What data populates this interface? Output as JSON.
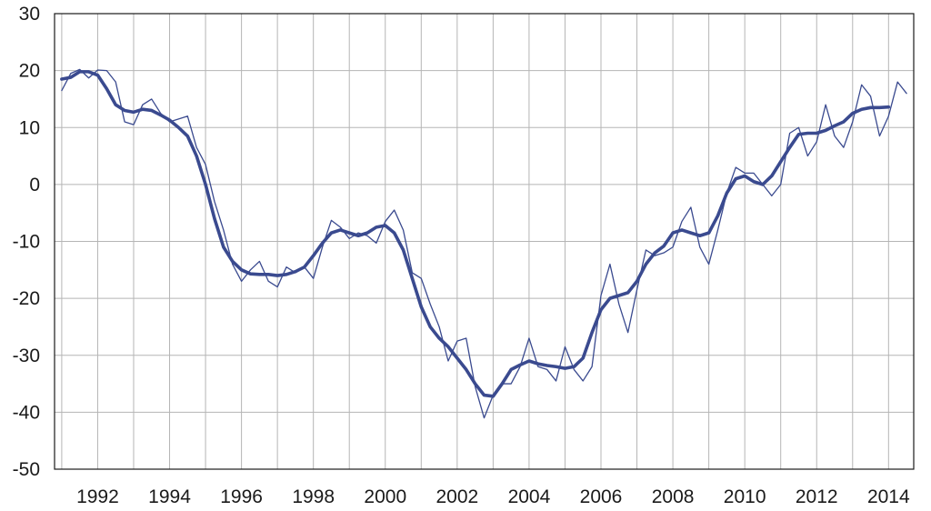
{
  "chart_data": {
    "type": "line",
    "title": "",
    "xlabel": "",
    "ylabel": "",
    "xlim": [
      1990.8,
      2014.7
    ],
    "ylim": [
      -50,
      30
    ],
    "grid": true,
    "x_ticks": [
      1992,
      1994,
      1996,
      1998,
      2000,
      2002,
      2004,
      2006,
      2008,
      2010,
      2012,
      2014
    ],
    "x_tick_labels": [
      "1992",
      "1994",
      "1996",
      "1998",
      "2000",
      "2002",
      "2004",
      "2006",
      "2008",
      "2010",
      "2012",
      "2014"
    ],
    "y_ticks": [
      -50,
      -40,
      -30,
      -20,
      -10,
      0,
      10,
      20,
      30
    ],
    "y_tick_labels": [
      "-50",
      "-40",
      "-30",
      "-20",
      "-10",
      "0",
      "10",
      "20",
      "30"
    ],
    "colors": {
      "line": "#3a4a8f",
      "grid": "#b5b5b5",
      "frame": "#1a1a1a"
    },
    "series": [
      {
        "x": [
          1991.0,
          1991.25,
          1991.5,
          1991.75,
          1992.0,
          1992.25,
          1992.5,
          1992.75,
          1993.0,
          1993.25,
          1993.5,
          1993.75,
          1994.0,
          1994.25,
          1994.5,
          1994.75,
          1995.0,
          1995.25,
          1995.5,
          1995.75,
          1996.0,
          1996.25,
          1996.5,
          1996.75,
          1997.0,
          1997.25,
          1997.5,
          1997.75,
          1998.0,
          1998.25,
          1998.5,
          1998.75,
          1999.0,
          1999.25,
          1999.5,
          1999.75,
          2000.0,
          2000.25,
          2000.5,
          2000.75,
          2001.0,
          2001.25,
          2001.5,
          2001.75,
          2002.0,
          2002.25,
          2002.5,
          2002.75,
          2003.0,
          2003.25,
          2003.5,
          2003.75,
          2004.0,
          2004.25,
          2004.5,
          2004.75,
          2005.0,
          2005.25,
          2005.5,
          2005.75,
          2006.0,
          2006.25,
          2006.5,
          2006.75,
          2007.0,
          2007.25,
          2007.5,
          2007.75,
          2008.0,
          2008.25,
          2008.5,
          2008.75,
          2009.0,
          2009.25,
          2009.5,
          2009.75,
          2010.0,
          2010.25,
          2010.5,
          2010.75,
          2011.0,
          2011.25,
          2011.5,
          2011.75,
          2012.0,
          2012.25,
          2012.5,
          2012.75,
          2013.0,
          2013.25,
          2013.5,
          2013.75,
          2014.0,
          2014.25,
          2014.5
        ],
        "values": [
          16.5,
          19.5,
          20.2,
          18.7,
          20.1,
          20.0,
          18.0,
          11.0,
          10.5,
          14.0,
          15.0,
          12.5,
          11.0,
          11.5,
          12.0,
          6.5,
          3.5,
          -3.0,
          -8.0,
          -14.0,
          -17.0,
          -15.0,
          -13.5,
          -17.0,
          -18.0,
          -14.5,
          -15.5,
          -14.5,
          -16.5,
          -11.0,
          -6.3,
          -7.5,
          -9.5,
          -8.5,
          -9.0,
          -10.3,
          -6.5,
          -4.5,
          -8.0,
          -15.5,
          -16.5,
          -21.0,
          -25.0,
          -31.0,
          -27.5,
          -27.0,
          -35.5,
          -41.0,
          -37.0,
          -35.0,
          -35.0,
          -32.0,
          -27.0,
          -32.0,
          -32.5,
          -34.5,
          -28.5,
          -32.5,
          -34.5,
          -32.0,
          -19.5,
          -14.0,
          -21.0,
          -26.0,
          -18.5,
          -11.5,
          -12.5,
          -12.0,
          -11.0,
          -6.5,
          -4.0,
          -11.0,
          -14.0,
          -8.0,
          -1.5,
          3.0,
          2.0,
          2.0,
          0.0,
          -2.0,
          0.0,
          9.0,
          10.0,
          5.0,
          7.5,
          14.0,
          8.5,
          6.5,
          11.0,
          17.5,
          15.5,
          8.5,
          12.0,
          18.0,
          16.0
        ]
      },
      {
        "x": [
          1991.0,
          1991.25,
          1991.5,
          1991.75,
          1992.0,
          1992.25,
          1992.5,
          1992.75,
          1993.0,
          1993.25,
          1993.5,
          1993.75,
          1994.0,
          1994.25,
          1994.5,
          1994.75,
          1995.0,
          1995.25,
          1995.5,
          1995.75,
          1996.0,
          1996.25,
          1996.5,
          1996.75,
          1997.0,
          1997.25,
          1997.5,
          1997.75,
          1998.0,
          1998.25,
          1998.5,
          1998.75,
          1999.0,
          1999.25,
          1999.5,
          1999.75,
          2000.0,
          2000.25,
          2000.5,
          2000.75,
          2001.0,
          2001.25,
          2001.5,
          2001.75,
          2002.0,
          2002.25,
          2002.5,
          2002.75,
          2003.0,
          2003.25,
          2003.5,
          2003.75,
          2004.0,
          2004.25,
          2004.5,
          2004.75,
          2005.0,
          2005.25,
          2005.5,
          2005.75,
          2006.0,
          2006.25,
          2006.5,
          2006.75,
          2007.0,
          2007.25,
          2007.5,
          2007.75,
          2008.0,
          2008.25,
          2008.5,
          2008.75,
          2009.0,
          2009.25,
          2009.5,
          2009.75,
          2010.0,
          2010.25,
          2010.5,
          2010.75,
          2011.0,
          2011.25,
          2011.5,
          2011.75,
          2012.0,
          2012.25,
          2012.5,
          2012.75,
          2013.0,
          2013.25,
          2013.5,
          2013.75,
          2014.0
        ],
        "values": [
          18.5,
          18.8,
          19.8,
          19.8,
          19.2,
          16.8,
          14.0,
          13.0,
          12.7,
          13.2,
          13.0,
          12.2,
          11.3,
          10.0,
          8.5,
          5.0,
          0.0,
          -6.0,
          -11.0,
          -13.5,
          -15.0,
          -15.7,
          -15.8,
          -15.8,
          -16.0,
          -15.8,
          -15.3,
          -14.5,
          -12.5,
          -10.3,
          -8.5,
          -8.0,
          -8.5,
          -9.0,
          -8.5,
          -7.5,
          -7.2,
          -8.5,
          -11.5,
          -16.5,
          -21.5,
          -25.0,
          -27.0,
          -28.5,
          -30.5,
          -32.5,
          -35.0,
          -37.0,
          -37.2,
          -35.0,
          -32.5,
          -31.7,
          -31.0,
          -31.5,
          -31.8,
          -32.0,
          -32.3,
          -32.0,
          -30.5,
          -26.0,
          -22.0,
          -20.0,
          -19.5,
          -19.0,
          -17.0,
          -14.0,
          -12.0,
          -10.8,
          -8.5,
          -8.0,
          -8.5,
          -9.0,
          -8.5,
          -5.5,
          -1.5,
          1.0,
          1.5,
          0.5,
          0.0,
          1.5,
          4.0,
          6.5,
          8.8,
          9.0,
          9.0,
          9.5,
          10.3,
          11.0,
          12.5,
          13.2,
          13.5,
          13.5,
          13.6
        ]
      }
    ]
  }
}
